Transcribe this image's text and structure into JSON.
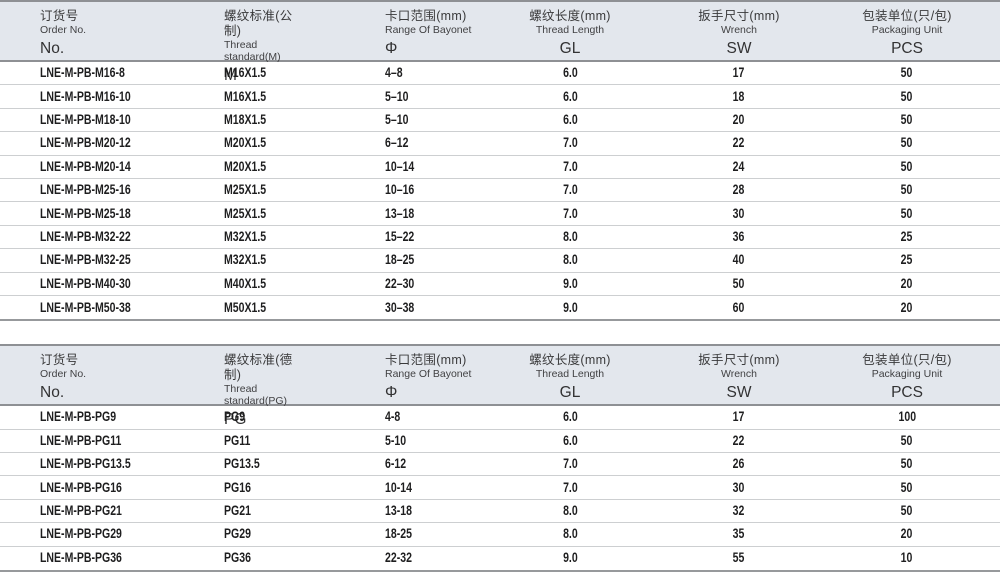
{
  "colors": {
    "header_bg": "#e3e7ed",
    "header_border": "#8e9094",
    "row_divider": "#cdcfd1",
    "table_bottom_border": "#97999c",
    "text": "#1e1e1f"
  },
  "tables": [
    {
      "name": "metric-thread-table",
      "columns": [
        {
          "zh": "订货号",
          "en": "Order No.",
          "code": "No."
        },
        {
          "zh": "螺纹标准(公制)",
          "en": "Thread standard(M)",
          "code": "M"
        },
        {
          "zh": "卡口范围(mm)",
          "en": "Range Of Bayonet",
          "code": "Φ"
        },
        {
          "zh": "螺纹长度(mm)",
          "en": "Thread Length",
          "code": "GL"
        },
        {
          "zh": "扳手尺寸(mm)",
          "en": "Wrench",
          "code": "SW"
        },
        {
          "zh": "包装单位(只/包)",
          "en": "Packaging Unit",
          "code": "PCS"
        }
      ],
      "rows": [
        [
          "LNE-M-PB-M16-8",
          "M16X1.5",
          "4–8",
          "6.0",
          "17",
          "50"
        ],
        [
          "LNE-M-PB-M16-10",
          "M16X1.5",
          "5–10",
          "6.0",
          "18",
          "50"
        ],
        [
          "LNE-M-PB-M18-10",
          "M18X1.5",
          "5–10",
          "6.0",
          "20",
          "50"
        ],
        [
          "LNE-M-PB-M20-12",
          "M20X1.5",
          "6–12",
          "7.0",
          "22",
          "50"
        ],
        [
          "LNE-M-PB-M20-14",
          "M20X1.5",
          "10–14",
          "7.0",
          "24",
          "50"
        ],
        [
          "LNE-M-PB-M25-16",
          "M25X1.5",
          "10–16",
          "7.0",
          "28",
          "50"
        ],
        [
          "LNE-M-PB-M25-18",
          "M25X1.5",
          "13–18",
          "7.0",
          "30",
          "50"
        ],
        [
          "LNE-M-PB-M32-22",
          "M32X1.5",
          "15–22",
          "8.0",
          "36",
          "25"
        ],
        [
          "LNE-M-PB-M32-25",
          "M32X1.5",
          "18–25",
          "8.0",
          "40",
          "25"
        ],
        [
          "LNE-M-PB-M40-30",
          "M40X1.5",
          "22–30",
          "9.0",
          "50",
          "20"
        ],
        [
          "LNE-M-PB-M50-38",
          "M50X1.5",
          "30–38",
          "9.0",
          "60",
          "20"
        ]
      ]
    },
    {
      "name": "pg-thread-table",
      "columns": [
        {
          "zh": "订货号",
          "en": "Order No.",
          "code": "No."
        },
        {
          "zh": "螺纹标准(德制)",
          "en": "Thread standard(PG)",
          "code": "PG"
        },
        {
          "zh": "卡口范围(mm)",
          "en": "Range Of Bayonet",
          "code": "Φ"
        },
        {
          "zh": "螺纹长度(mm)",
          "en": "Thread Length",
          "code": "GL"
        },
        {
          "zh": "扳手尺寸(mm)",
          "en": "Wrench",
          "code": "SW"
        },
        {
          "zh": "包装单位(只/包)",
          "en": "Packaging Unit",
          "code": "PCS"
        }
      ],
      "rows": [
        [
          "LNE-M-PB-PG9",
          "PG9",
          "4-8",
          "6.0",
          "17",
          "100"
        ],
        [
          "LNE-M-PB-PG11",
          "PG11",
          "5-10",
          "6.0",
          "22",
          "50"
        ],
        [
          "LNE-M-PB-PG13.5",
          "PG13.5",
          "6-12",
          "7.0",
          "26",
          "50"
        ],
        [
          "LNE-M-PB-PG16",
          "PG16",
          "10-14",
          "7.0",
          "30",
          "50"
        ],
        [
          "LNE-M-PB-PG21",
          "PG21",
          "13-18",
          "8.0",
          "32",
          "50"
        ],
        [
          "LNE-M-PB-PG29",
          "PG29",
          "18-25",
          "8.0",
          "35",
          "20"
        ],
        [
          "LNE-M-PB-PG36",
          "PG36",
          "22-32",
          "9.0",
          "55",
          "10"
        ]
      ]
    }
  ]
}
